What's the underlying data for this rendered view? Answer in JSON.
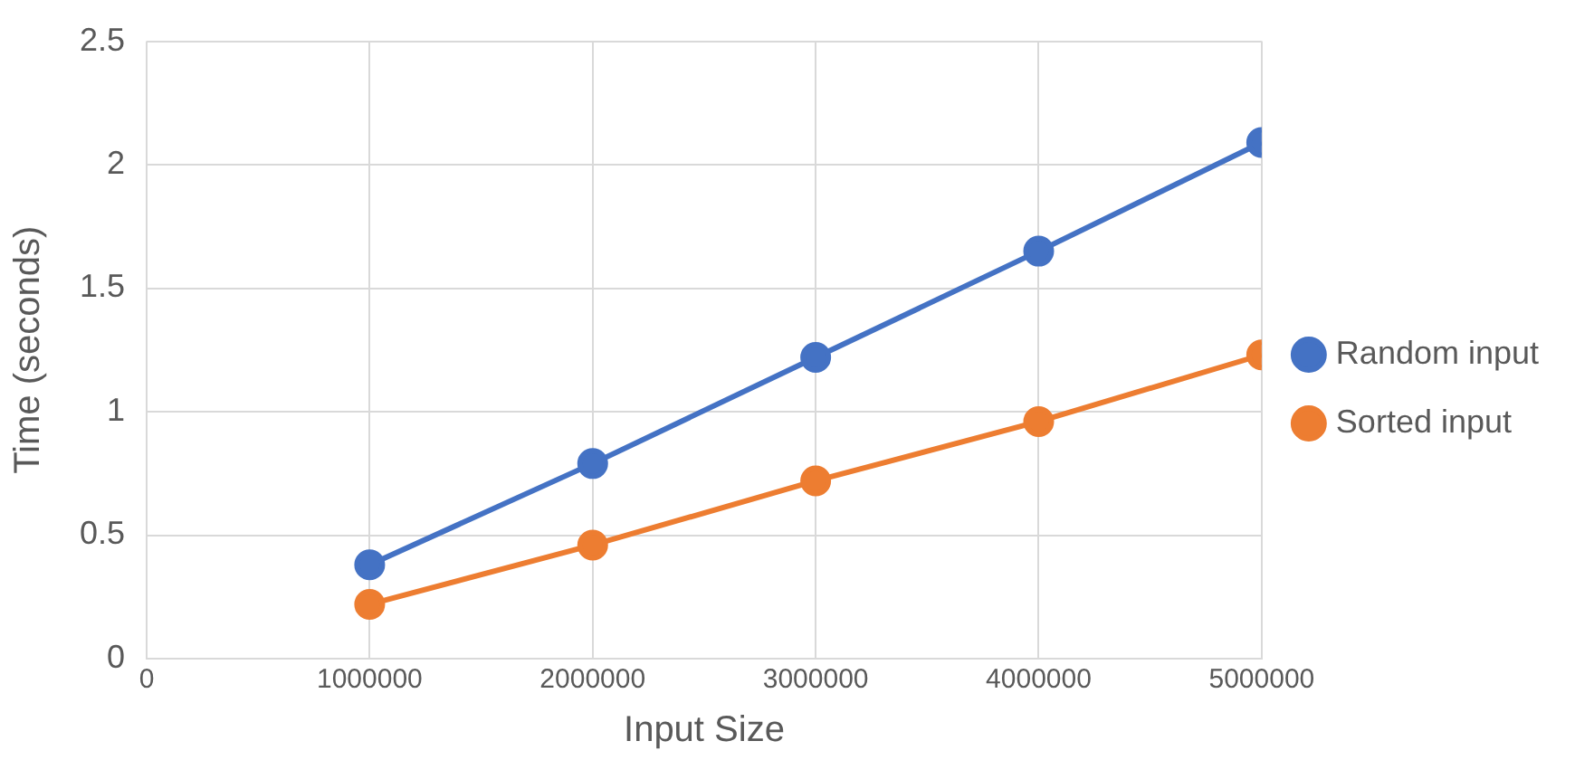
{
  "chart_data": {
    "type": "line",
    "xlabel": "Input Size",
    "ylabel": "Time (seconds)",
    "x": [
      1000000,
      2000000,
      3000000,
      4000000,
      5000000
    ],
    "series": [
      {
        "name": "Random input",
        "color": "#4472c4",
        "values": [
          0.38,
          0.79,
          1.22,
          1.65,
          2.09
        ]
      },
      {
        "name": "Sorted input",
        "color": "#ed7d31",
        "values": [
          0.22,
          0.46,
          0.72,
          0.96,
          1.23
        ]
      }
    ],
    "xlim": [
      0,
      5000000
    ],
    "xticks": [
      0,
      1000000,
      2000000,
      3000000,
      4000000,
      5000000
    ],
    "ylim": [
      0,
      2.5
    ],
    "yticks": [
      0,
      0.5,
      1,
      1.5,
      2,
      2.5
    ],
    "grid": true,
    "legend": "right",
    "marker": "circle",
    "line_style": "solid"
  }
}
